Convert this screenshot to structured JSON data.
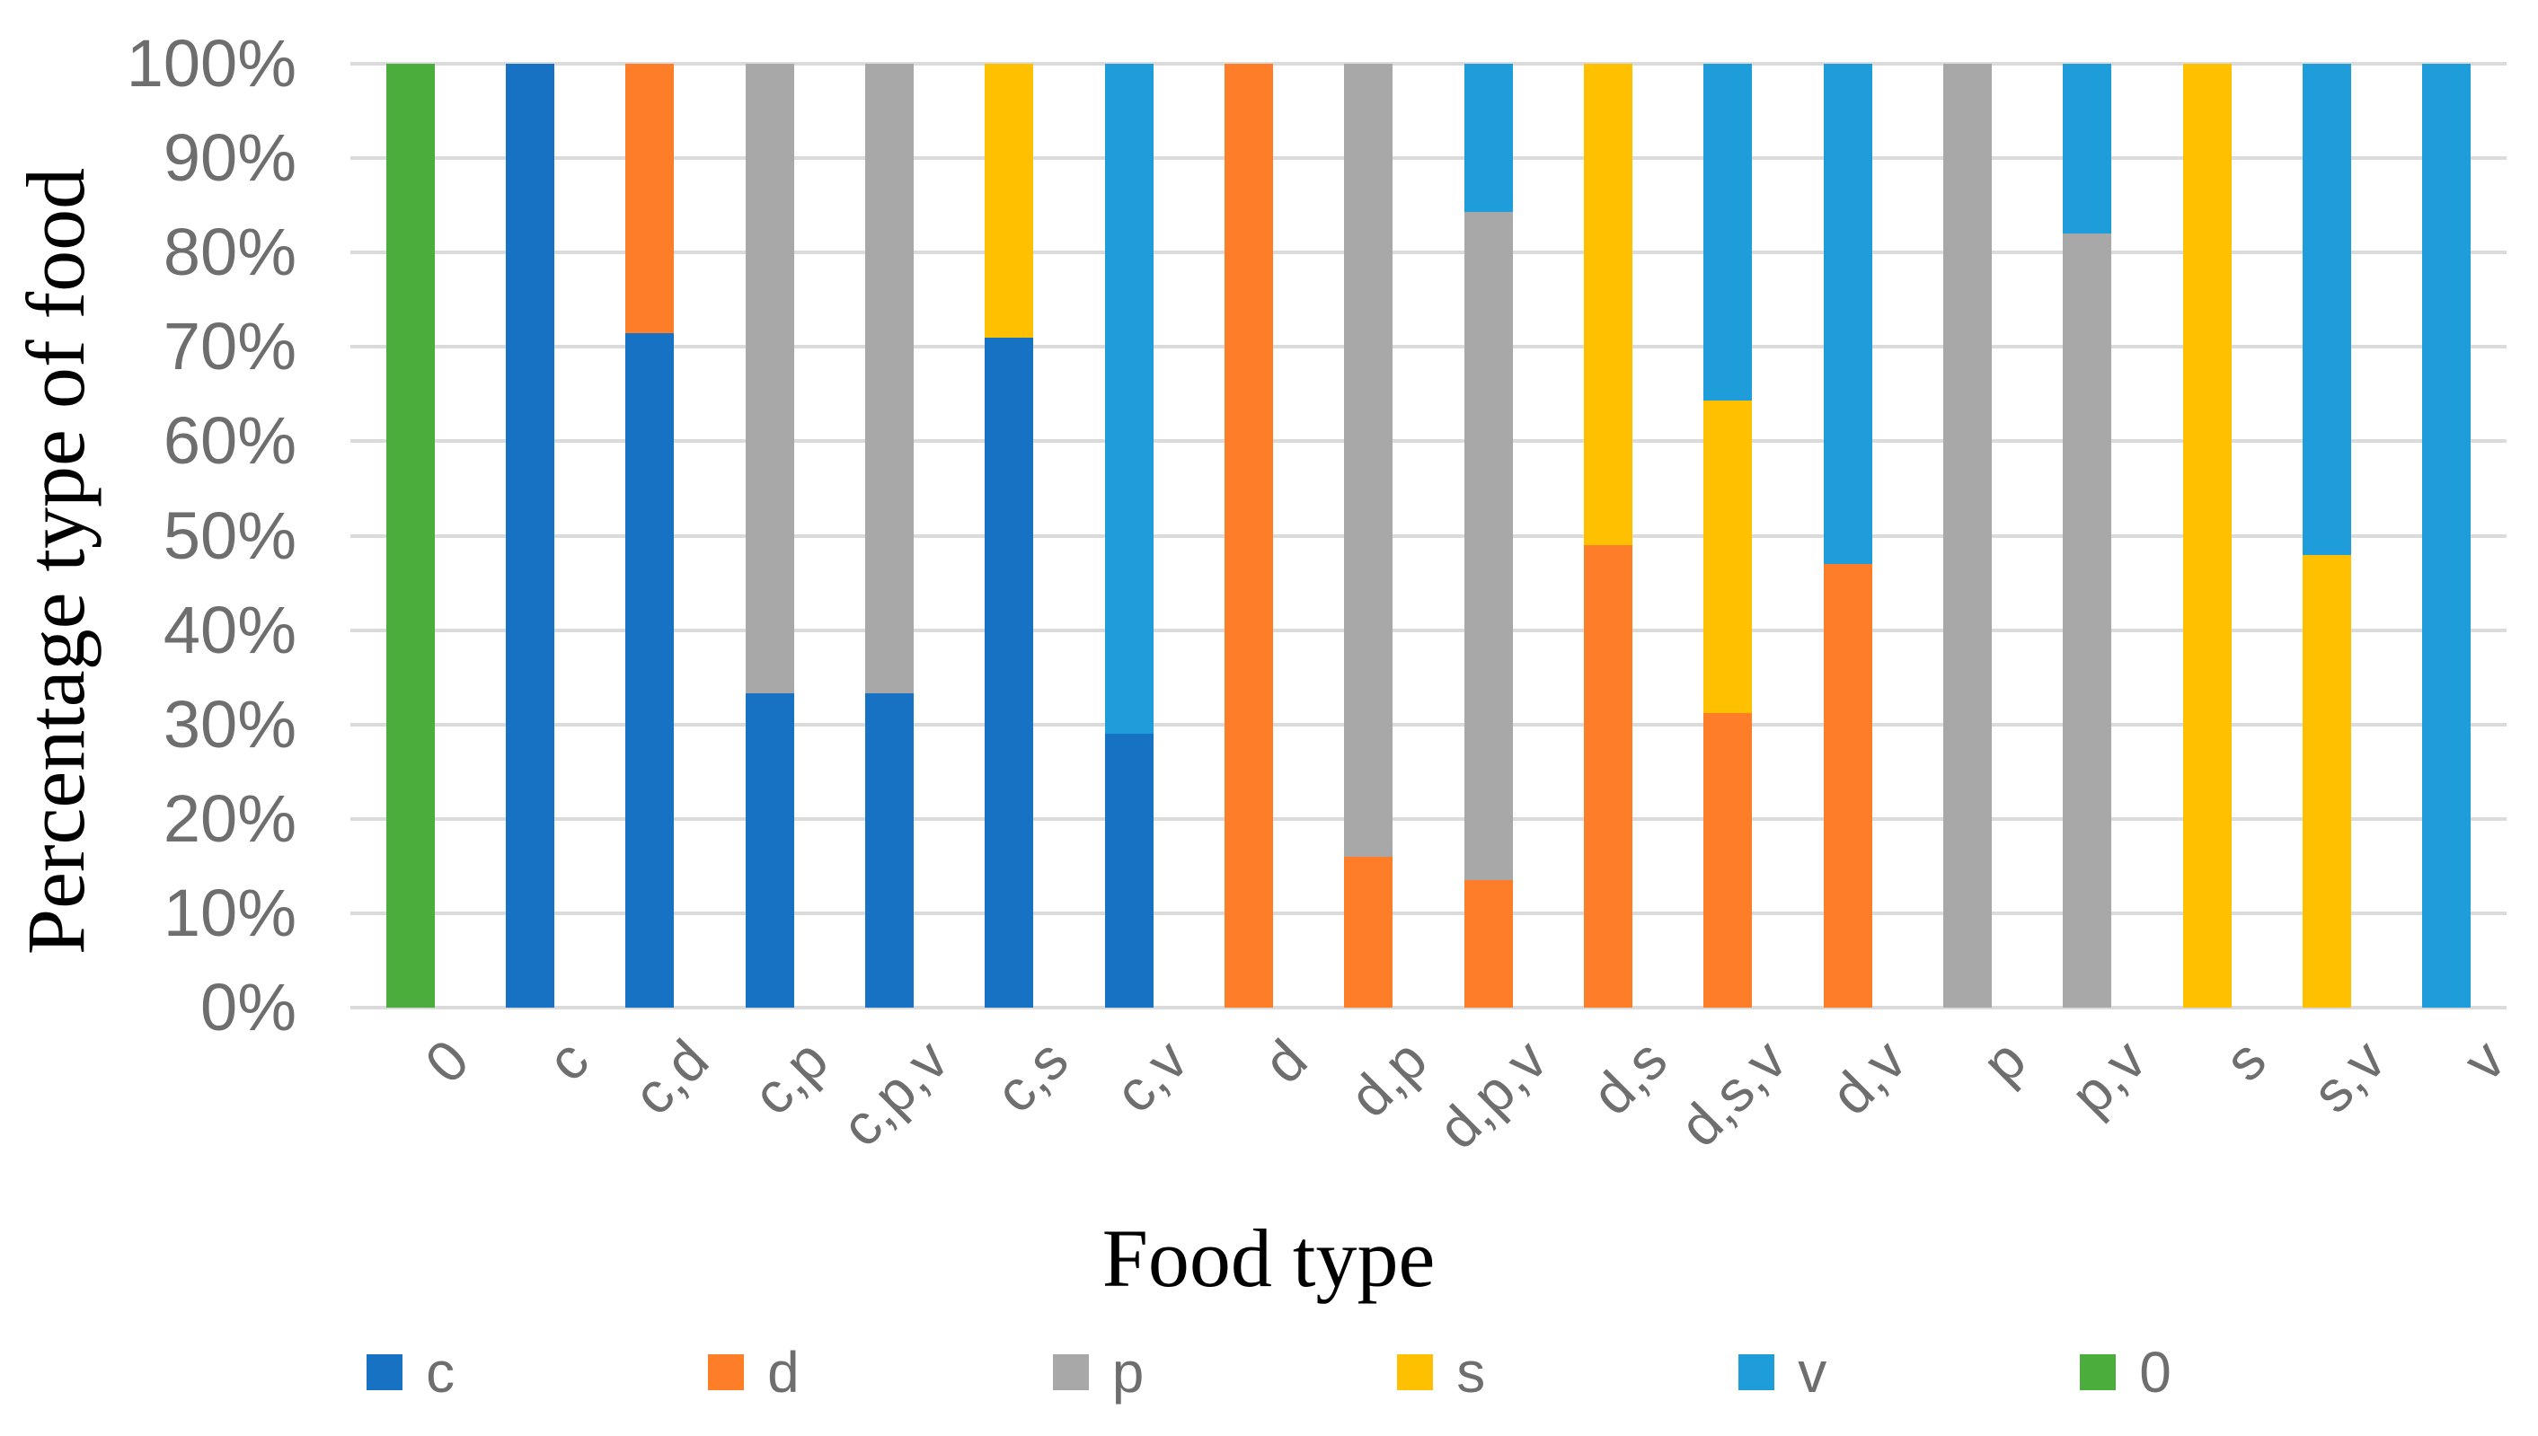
{
  "chart_data": {
    "type": "bar",
    "stacked": true,
    "units": "percent",
    "title": "",
    "xlabel": "Food type",
    "ylabel": "Percentage type of food",
    "ylim": [
      0,
      100
    ],
    "ytick_step": 10,
    "ytick_labels": [
      "0%",
      "10%",
      "20%",
      "30%",
      "40%",
      "50%",
      "60%",
      "70%",
      "80%",
      "90%",
      "100%"
    ],
    "grid": true,
    "legend_position": "bottom",
    "categories": [
      "0",
      "c",
      "c,d",
      "c,p",
      "c,p,v",
      "c,s",
      "c,v",
      "d",
      "d,p",
      "d,p,v",
      "d,s",
      "d,s,v",
      "d,v",
      "p",
      "p,v",
      "s",
      "s,v",
      "v"
    ],
    "series": [
      {
        "name": "c",
        "color": "#1772C4",
        "values": [
          0,
          100,
          71.5,
          33.3,
          33.3,
          71,
          29,
          0,
          0,
          0,
          0,
          0,
          0,
          0,
          0,
          0,
          0,
          0
        ]
      },
      {
        "name": "d",
        "color": "#FD7D28",
        "values": [
          0,
          0,
          28.5,
          0,
          0,
          0,
          0,
          100,
          16,
          13.5,
          49,
          31.2,
          47,
          0,
          0,
          0,
          0,
          0
        ]
      },
      {
        "name": "p",
        "color": "#A8A8A8",
        "values": [
          0,
          0,
          0,
          66.7,
          66.7,
          0,
          0,
          0,
          84,
          70.8,
          0,
          0,
          0,
          100,
          82,
          0,
          0,
          0
        ]
      },
      {
        "name": "s",
        "color": "#FFC000",
        "values": [
          0,
          0,
          0,
          0,
          0,
          29,
          0,
          0,
          0,
          0,
          51,
          33.1,
          0,
          0,
          0,
          100,
          48,
          0
        ]
      },
      {
        "name": "v",
        "color": "#1F9DDA",
        "values": [
          0,
          0,
          0,
          0,
          0,
          0,
          71,
          0,
          0,
          15.7,
          0,
          35.7,
          53,
          0,
          18,
          0,
          52,
          100
        ]
      },
      {
        "name": "0",
        "color": "#4BAD3C",
        "values": [
          100,
          0,
          0,
          0,
          0,
          0,
          0,
          0,
          0,
          0,
          0,
          0,
          0,
          0,
          0,
          0,
          0,
          0
        ]
      }
    ],
    "legend_entries": [
      "c",
      "d",
      "p",
      "s",
      "v",
      "0"
    ]
  }
}
